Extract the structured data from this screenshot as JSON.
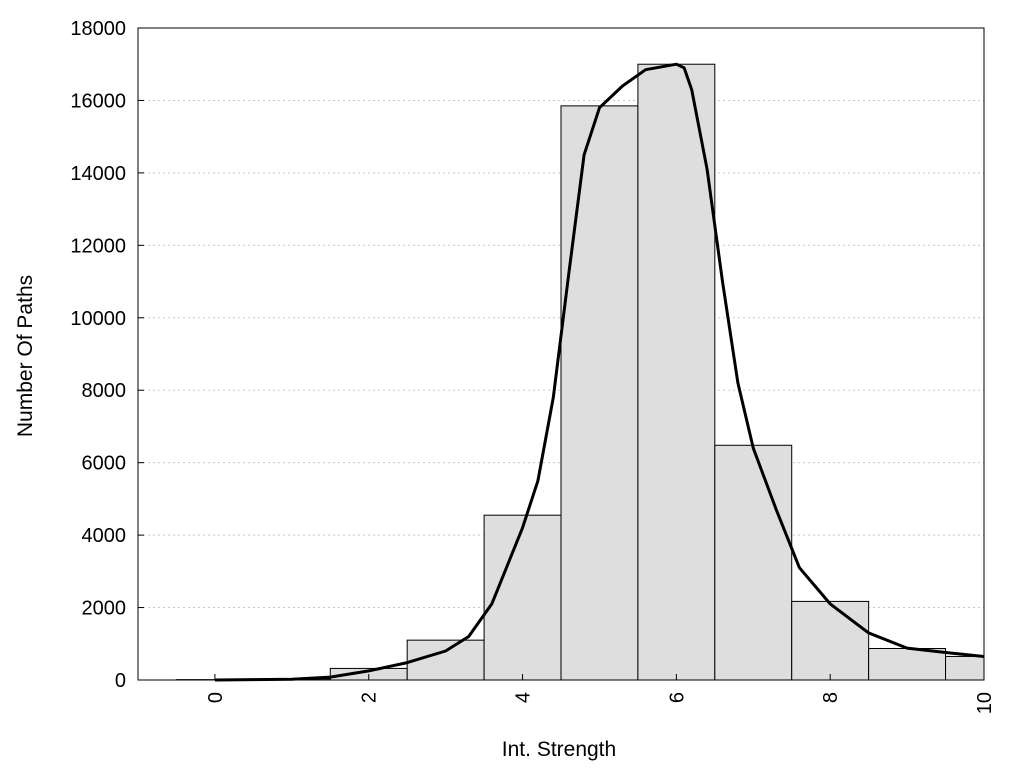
{
  "chart_data": {
    "type": "bar",
    "xlabel": "Int. Strength",
    "ylabel": "Number Of Paths",
    "xlim": [
      -1,
      10
    ],
    "ylim": [
      0,
      18000
    ],
    "xticks": [
      0,
      2,
      4,
      6,
      8,
      10
    ],
    "yticks": [
      0,
      2000,
      4000,
      6000,
      8000,
      10000,
      12000,
      14000,
      16000,
      18000
    ],
    "grid": "y-dotted",
    "bars": [
      {
        "x": 0,
        "value": 10
      },
      {
        "x": 1,
        "value": 30
      },
      {
        "x": 2,
        "value": 320
      },
      {
        "x": 3,
        "value": 1100
      },
      {
        "x": 4,
        "value": 4550
      },
      {
        "x": 5,
        "value": 15850
      },
      {
        "x": 6,
        "value": 17000
      },
      {
        "x": 7,
        "value": 6480
      },
      {
        "x": 8,
        "value": 2170
      },
      {
        "x": 9,
        "value": 870
      },
      {
        "x": 10,
        "value": 650
      }
    ],
    "curve": [
      [
        0,
        0
      ],
      [
        0.5,
        10
      ],
      [
        1,
        20
      ],
      [
        1.5,
        80
      ],
      [
        2,
        250
      ],
      [
        2.5,
        480
      ],
      [
        3,
        800
      ],
      [
        3.3,
        1200
      ],
      [
        3.6,
        2100
      ],
      [
        4,
        4200
      ],
      [
        4.2,
        5500
      ],
      [
        4.4,
        7800
      ],
      [
        4.6,
        11200
      ],
      [
        4.8,
        14500
      ],
      [
        5,
        15800
      ],
      [
        5.3,
        16400
      ],
      [
        5.6,
        16850
      ],
      [
        6,
        17000
      ],
      [
        6.1,
        16900
      ],
      [
        6.2,
        16300
      ],
      [
        6.4,
        14100
      ],
      [
        6.6,
        11000
      ],
      [
        6.8,
        8200
      ],
      [
        7,
        6400
      ],
      [
        7.3,
        4700
      ],
      [
        7.6,
        3100
      ],
      [
        8,
        2100
      ],
      [
        8.5,
        1300
      ],
      [
        9,
        880
      ],
      [
        9.5,
        760
      ],
      [
        10,
        650
      ]
    ]
  }
}
